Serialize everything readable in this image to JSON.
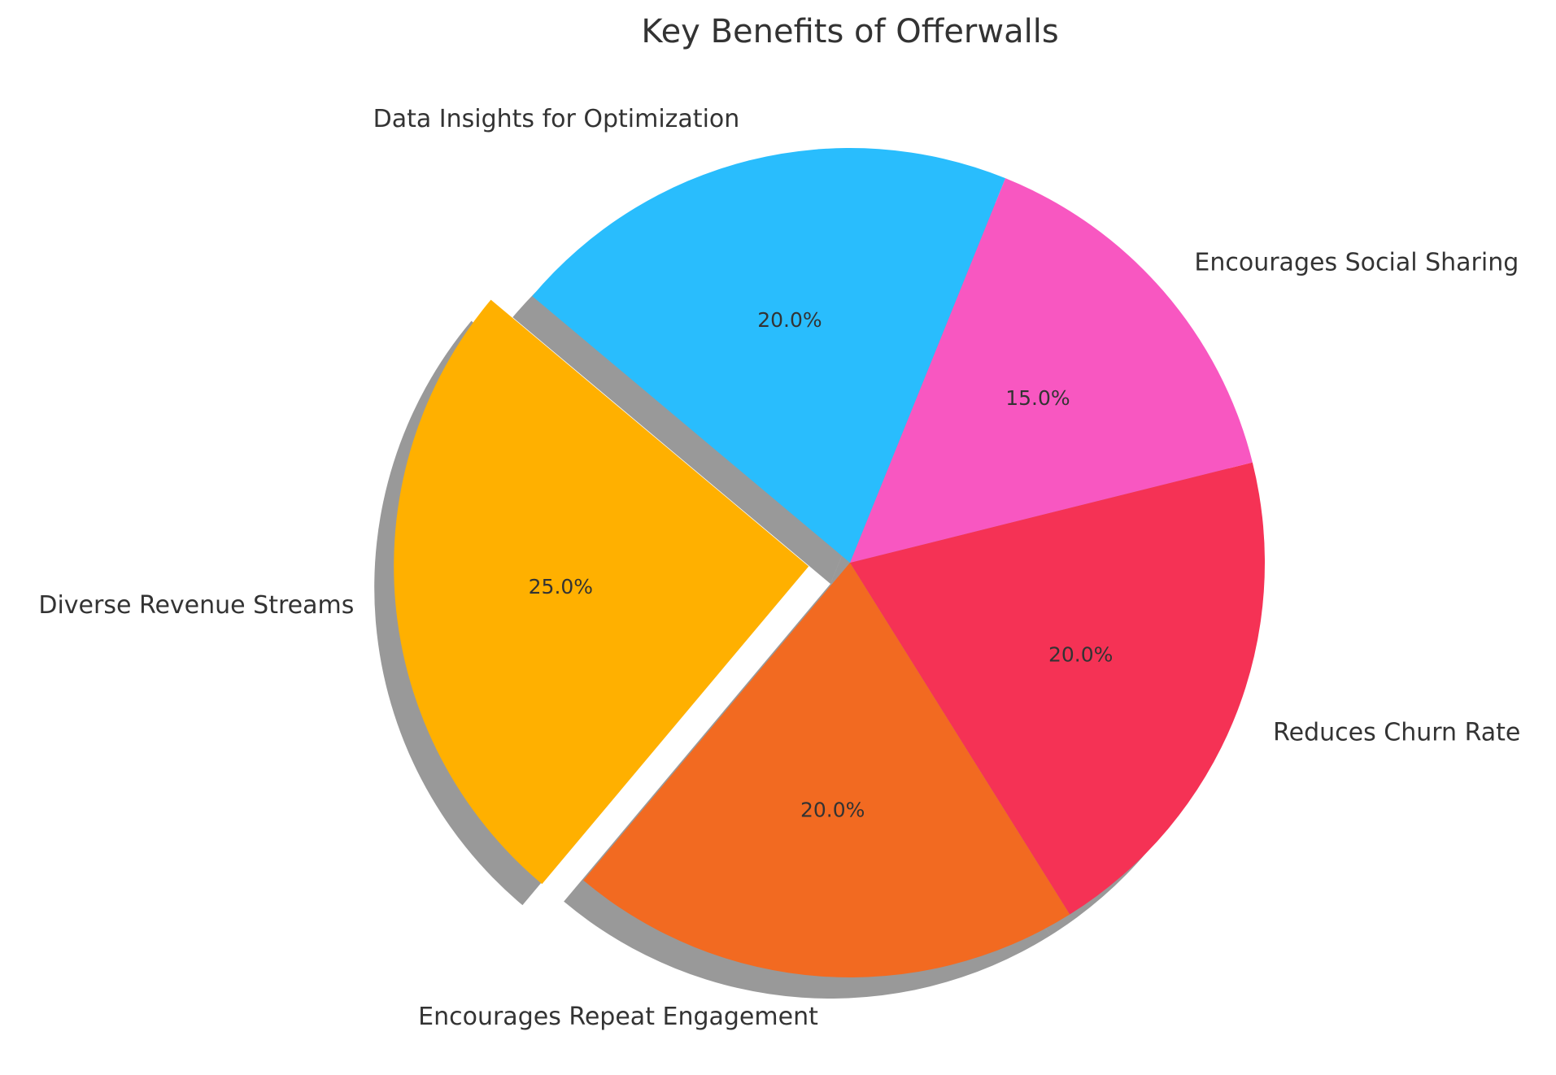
{
  "chart_data": {
    "type": "pie",
    "title": "Key Benefits of Offerwalls",
    "categories": [
      "Diverse Revenue Streams",
      "Encourages Repeat Engagement",
      "Reduces Churn Rate",
      "Encourages Social Sharing",
      "Data Insights for Optimization"
    ],
    "values": [
      25,
      20,
      20,
      15,
      20
    ],
    "percent_labels": [
      "25.0%",
      "20.0%",
      "20.0%",
      "15.0%",
      "20.0%"
    ],
    "colors": [
      "#FFB000",
      "#F26A21",
      "#F53255",
      "#F857C1",
      "#29BDFD"
    ],
    "start_angle_deg": 140,
    "direction": "counterclockwise",
    "exploded_slice": "Diverse Revenue Streams",
    "shadow": true,
    "legend": "none"
  }
}
